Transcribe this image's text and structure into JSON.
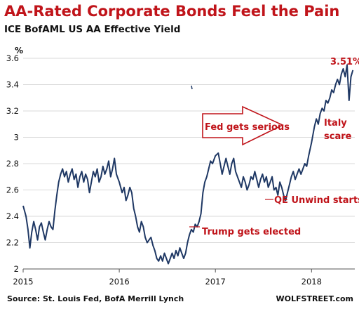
{
  "header": {
    "title": "AA-Rated Corporate Bonds Feel the Pain",
    "subtitle": "ICE BofAML US AA Effective Yield"
  },
  "footer": {
    "source": "Source: St. Louis Fed, BofA Merrill Lynch",
    "brand": "WOLFSTREET.com"
  },
  "colors": {
    "line": "#1f3864",
    "accent": "#c0141a",
    "grid": "#d9d9d9"
  },
  "chart_data": {
    "type": "line",
    "title": "AA-Rated Corporate Bonds Feel the Pain",
    "subtitle": "ICE BofAML US AA Effective Yield",
    "ylabel": "%",
    "xlabel": "",
    "ylim": [
      2.0,
      3.6
    ],
    "xlim": [
      2015.0,
      2018.45
    ],
    "yticks": [
      2,
      2.2,
      2.4,
      2.6,
      2.8,
      3,
      3.2,
      3.4,
      3.6
    ],
    "xticks": [
      {
        "value": 2015,
        "label": "2015"
      },
      {
        "value": 2016,
        "label": "2016"
      },
      {
        "value": 2017,
        "label": "2017"
      },
      {
        "value": 2018,
        "label": "2018"
      }
    ],
    "grid": "horizontal",
    "series": [
      {
        "name": "",
        "x": [
          2015.0,
          2015.03,
          2015.05,
          2015.07,
          2015.09,
          2015.11,
          2015.13,
          2015.15,
          2015.17,
          2015.19,
          2015.21,
          2015.23,
          2015.25,
          2015.27,
          2015.29,
          2015.31,
          2015.33,
          2015.35,
          2015.37,
          2015.39,
          2015.41,
          2015.43,
          2015.45,
          2015.47,
          2015.49,
          2015.51,
          2015.53,
          2015.55,
          2015.57,
          2015.59,
          2015.61,
          2015.63,
          2015.65,
          2015.67,
          2015.69,
          2015.71,
          2015.73,
          2015.75,
          2015.77,
          2015.79,
          2015.81,
          2015.83,
          2015.85,
          2015.87,
          2015.89,
          2015.91,
          2015.93,
          2015.95,
          2015.97,
          2016.0,
          2016.03,
          2016.05,
          2016.07,
          2016.09,
          2016.11,
          2016.13,
          2016.15,
          2016.17,
          2016.19,
          2016.21,
          2016.23,
          2016.25,
          2016.27,
          2016.29,
          2016.31,
          2016.33,
          2016.35,
          2016.37,
          2016.39,
          2016.41,
          2016.43,
          2016.45,
          2016.47,
          2016.49,
          2016.51,
          2016.53,
          2016.55,
          2016.57,
          2016.59,
          2016.61,
          2016.63,
          2016.65,
          2016.67,
          2016.69,
          2016.71,
          2016.73,
          2016.75,
          2016.77,
          2016.79,
          2016.81,
          2016.83,
          2016.85,
          2016.87,
          2016.89,
          2016.91,
          2016.93,
          2016.95,
          2016.97,
          2017.0,
          2017.03,
          2017.05,
          2017.07,
          2017.09,
          2017.11,
          2017.13,
          2017.15,
          2017.17,
          2017.19,
          2017.21,
          2017.23,
          2017.25,
          2017.27,
          2017.29,
          2017.31,
          2017.33,
          2017.35,
          2017.37,
          2017.39,
          2017.41,
          2017.43,
          2017.45,
          2017.47,
          2017.49,
          2017.51,
          2017.53,
          2017.55,
          2017.57,
          2017.59,
          2017.61,
          2017.63,
          2017.65,
          2017.67,
          2017.69,
          2017.71,
          2017.73,
          2017.75,
          2017.77,
          2017.79,
          2017.81,
          2017.83,
          2017.85,
          2017.87,
          2017.89,
          2017.91,
          2017.93,
          2017.95,
          2017.97,
          2018.0,
          2018.03,
          2018.05,
          2018.07,
          2018.09,
          2018.11,
          2018.13,
          2018.15,
          2018.17,
          2018.19,
          2018.21,
          2018.23,
          2018.25,
          2018.27,
          2018.29,
          2018.31,
          2018.33,
          2018.35,
          2018.37,
          2018.39,
          2018.41,
          2018.43
        ],
        "y": [
          2.48,
          2.4,
          2.3,
          2.16,
          2.28,
          2.36,
          2.3,
          2.22,
          2.32,
          2.35,
          2.28,
          2.22,
          2.3,
          2.36,
          2.32,
          2.3,
          2.44,
          2.56,
          2.66,
          2.72,
          2.76,
          2.7,
          2.74,
          2.66,
          2.72,
          2.76,
          2.68,
          2.72,
          2.62,
          2.7,
          2.74,
          2.66,
          2.72,
          2.68,
          2.58,
          2.66,
          2.74,
          2.7,
          2.76,
          2.66,
          2.7,
          2.78,
          2.72,
          2.76,
          2.82,
          2.7,
          2.76,
          2.84,
          2.72,
          2.66,
          2.58,
          2.62,
          2.52,
          2.56,
          2.62,
          2.58,
          2.46,
          2.4,
          2.32,
          2.28,
          2.36,
          2.32,
          2.24,
          2.2,
          2.22,
          2.24,
          2.18,
          2.14,
          2.08,
          2.06,
          2.1,
          2.06,
          2.12,
          2.08,
          2.04,
          2.08,
          2.12,
          2.08,
          2.14,
          2.1,
          2.16,
          2.12,
          2.08,
          2.12,
          2.2,
          2.26,
          2.3,
          2.28,
          2.34,
          2.32,
          2.36,
          2.42,
          2.58,
          2.66,
          2.7,
          2.76,
          2.82,
          2.8,
          2.86,
          2.88,
          2.8,
          2.72,
          2.78,
          2.84,
          2.78,
          2.72,
          2.8,
          2.84,
          2.74,
          2.7,
          2.66,
          2.62,
          2.7,
          2.66,
          2.6,
          2.64,
          2.7,
          2.68,
          2.74,
          2.68,
          2.62,
          2.68,
          2.72,
          2.66,
          2.7,
          2.62,
          2.66,
          2.7,
          2.6,
          2.62,
          2.56,
          2.66,
          2.62,
          2.56,
          2.52,
          2.58,
          2.64,
          2.7,
          2.74,
          2.68,
          2.72,
          2.76,
          2.72,
          2.76,
          2.8,
          2.78,
          2.86,
          2.96,
          3.08,
          3.14,
          3.1,
          3.18,
          3.22,
          3.2,
          3.28,
          3.26,
          3.3,
          3.36,
          3.34,
          3.4,
          3.44,
          3.4,
          3.48,
          3.52,
          3.46,
          3.55,
          3.28,
          3.46,
          3.51
        ]
      }
    ],
    "annotations": [
      {
        "text": "3.51%",
        "x": 2018.4,
        "y": 3.51
      },
      {
        "text": "Italy",
        "x": 2018.33,
        "y": 3.28
      },
      {
        "text": "scare",
        "x": 2018.33,
        "y": 3.28
      },
      {
        "text": "Fed gets serious",
        "x": 2017.0,
        "y": 3.0
      },
      {
        "text": "QE Unwind starts",
        "x": 2017.75,
        "y": 2.52
      },
      {
        "text": "Trump gets elected",
        "x": 2016.88,
        "y": 2.36
      }
    ]
  }
}
